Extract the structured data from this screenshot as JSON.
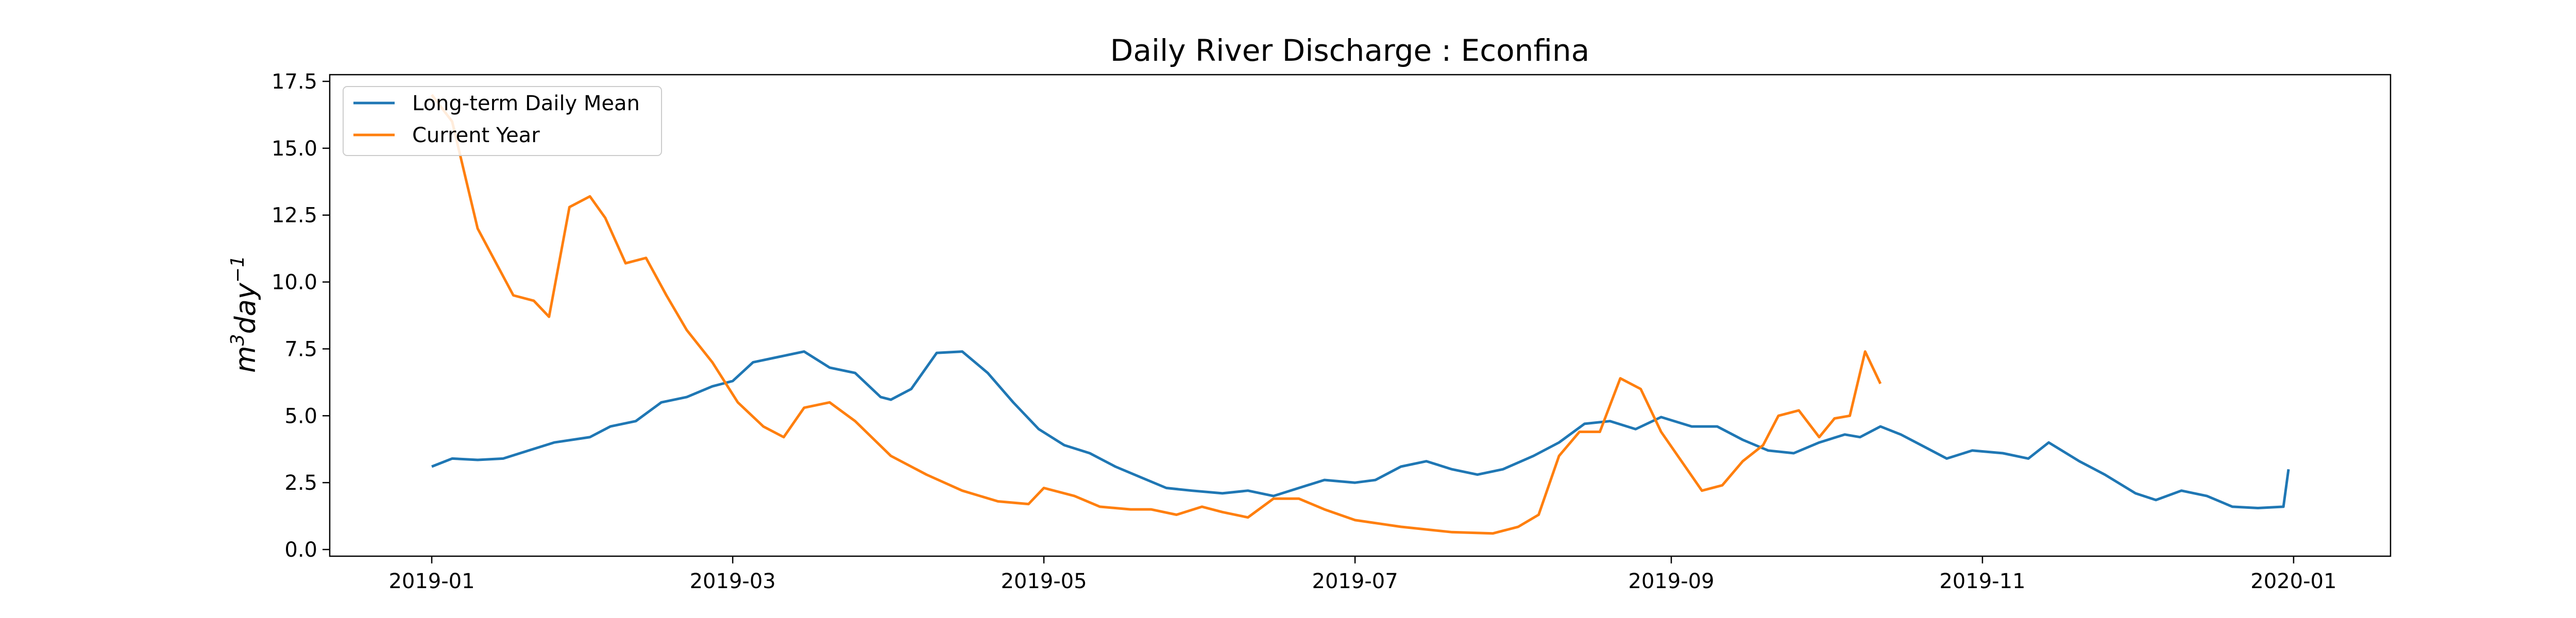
{
  "chart_data": {
    "type": "line",
    "title": "Daily River Discharge : Econfina",
    "xlabel": "",
    "ylabel": "m³day⁻¹",
    "ylabel_parts": {
      "m": "m",
      "m_sup": "3",
      "day": "day",
      "day_sup": "−1"
    },
    "x_axis": "date",
    "xlim": [
      "2018-12-12",
      "2020-01-20"
    ],
    "ylim": [
      -0.25,
      17.75
    ],
    "x_ticks": [
      {
        "value": "2019-01-01",
        "label": "2019-01"
      },
      {
        "value": "2019-03-01",
        "label": "2019-03"
      },
      {
        "value": "2019-05-01",
        "label": "2019-05"
      },
      {
        "value": "2019-07-01",
        "label": "2019-07"
      },
      {
        "value": "2019-09-01",
        "label": "2019-09"
      },
      {
        "value": "2019-11-01",
        "label": "2019-11"
      },
      {
        "value": "2020-01-01",
        "label": "2020-01"
      }
    ],
    "y_ticks": [
      {
        "value": 0,
        "label": "0.0"
      },
      {
        "value": 2.5,
        "label": "2.5"
      },
      {
        "value": 5,
        "label": "5.0"
      },
      {
        "value": 7.5,
        "label": "7.5"
      },
      {
        "value": 10,
        "label": "10.0"
      },
      {
        "value": 12.5,
        "label": "12.5"
      },
      {
        "value": 15,
        "label": "15.0"
      },
      {
        "value": 17.5,
        "label": "17.5"
      }
    ],
    "grid": false,
    "legend_position": "top-left",
    "series": [
      {
        "name": "Long-term Daily Mean",
        "color": "#1f77b4",
        "points": [
          [
            "2019-01-01",
            3.1
          ],
          [
            "2019-01-05",
            3.4
          ],
          [
            "2019-01-10",
            3.35
          ],
          [
            "2019-01-15",
            3.4
          ],
          [
            "2019-01-20",
            3.7
          ],
          [
            "2019-01-25",
            4.0
          ],
          [
            "2019-02-01",
            4.2
          ],
          [
            "2019-02-05",
            4.6
          ],
          [
            "2019-02-10",
            4.8
          ],
          [
            "2019-02-15",
            5.5
          ],
          [
            "2019-02-20",
            5.7
          ],
          [
            "2019-02-25",
            6.1
          ],
          [
            "2019-03-01",
            6.3
          ],
          [
            "2019-03-05",
            7.0
          ],
          [
            "2019-03-10",
            7.2
          ],
          [
            "2019-03-15",
            7.4
          ],
          [
            "2019-03-20",
            6.8
          ],
          [
            "2019-03-25",
            6.6
          ],
          [
            "2019-03-30",
            5.7
          ],
          [
            "2019-04-01",
            5.6
          ],
          [
            "2019-04-05",
            6.0
          ],
          [
            "2019-04-10",
            7.35
          ],
          [
            "2019-04-15",
            7.4
          ],
          [
            "2019-04-20",
            6.6
          ],
          [
            "2019-04-25",
            5.5
          ],
          [
            "2019-04-30",
            4.5
          ],
          [
            "2019-05-05",
            3.9
          ],
          [
            "2019-05-10",
            3.6
          ],
          [
            "2019-05-15",
            3.1
          ],
          [
            "2019-05-20",
            2.7
          ],
          [
            "2019-05-25",
            2.3
          ],
          [
            "2019-05-30",
            2.2
          ],
          [
            "2019-06-05",
            2.1
          ],
          [
            "2019-06-10",
            2.2
          ],
          [
            "2019-06-15",
            2.0
          ],
          [
            "2019-06-20",
            2.3
          ],
          [
            "2019-06-25",
            2.6
          ],
          [
            "2019-07-01",
            2.5
          ],
          [
            "2019-07-05",
            2.6
          ],
          [
            "2019-07-10",
            3.1
          ],
          [
            "2019-07-15",
            3.3
          ],
          [
            "2019-07-20",
            3.0
          ],
          [
            "2019-07-25",
            2.8
          ],
          [
            "2019-07-30",
            3.0
          ],
          [
            "2019-08-05",
            3.5
          ],
          [
            "2019-08-10",
            4.0
          ],
          [
            "2019-08-15",
            4.7
          ],
          [
            "2019-08-20",
            4.8
          ],
          [
            "2019-08-25",
            4.5
          ],
          [
            "2019-08-30",
            4.95
          ],
          [
            "2019-09-05",
            4.6
          ],
          [
            "2019-09-10",
            4.6
          ],
          [
            "2019-09-15",
            4.1
          ],
          [
            "2019-09-20",
            3.7
          ],
          [
            "2019-09-25",
            3.6
          ],
          [
            "2019-09-30",
            4.0
          ],
          [
            "2019-10-05",
            4.3
          ],
          [
            "2019-10-08",
            4.2
          ],
          [
            "2019-10-12",
            4.6
          ],
          [
            "2019-10-16",
            4.3
          ],
          [
            "2019-10-20",
            3.9
          ],
          [
            "2019-10-25",
            3.4
          ],
          [
            "2019-10-30",
            3.7
          ],
          [
            "2019-11-05",
            3.6
          ],
          [
            "2019-11-10",
            3.4
          ],
          [
            "2019-11-14",
            4.0
          ],
          [
            "2019-11-20",
            3.3
          ],
          [
            "2019-11-25",
            2.8
          ],
          [
            "2019-12-01",
            2.1
          ],
          [
            "2019-12-05",
            1.85
          ],
          [
            "2019-12-10",
            2.2
          ],
          [
            "2019-12-15",
            2.0
          ],
          [
            "2019-12-20",
            1.6
          ],
          [
            "2019-12-25",
            1.55
          ],
          [
            "2019-12-30",
            1.6
          ],
          [
            "2019-12-31",
            3.0
          ]
        ]
      },
      {
        "name": "Current Year",
        "color": "#ff7f0e",
        "points": [
          [
            "2019-01-01",
            17.0
          ],
          [
            "2019-01-05",
            16.0
          ],
          [
            "2019-01-10",
            12.0
          ],
          [
            "2019-01-17",
            9.5
          ],
          [
            "2019-01-21",
            9.3
          ],
          [
            "2019-01-24",
            8.7
          ],
          [
            "2019-01-28",
            12.8
          ],
          [
            "2019-02-01",
            13.2
          ],
          [
            "2019-02-04",
            12.4
          ],
          [
            "2019-02-08",
            10.7
          ],
          [
            "2019-02-12",
            10.9
          ],
          [
            "2019-02-16",
            9.5
          ],
          [
            "2019-02-20",
            8.2
          ],
          [
            "2019-02-25",
            7.0
          ],
          [
            "2019-03-02",
            5.5
          ],
          [
            "2019-03-07",
            4.6
          ],
          [
            "2019-03-11",
            4.2
          ],
          [
            "2019-03-15",
            5.3
          ],
          [
            "2019-03-20",
            5.5
          ],
          [
            "2019-03-25",
            4.8
          ],
          [
            "2019-04-01",
            3.5
          ],
          [
            "2019-04-08",
            2.8
          ],
          [
            "2019-04-15",
            2.2
          ],
          [
            "2019-04-22",
            1.8
          ],
          [
            "2019-04-28",
            1.7
          ],
          [
            "2019-05-01",
            2.3
          ],
          [
            "2019-05-07",
            2.0
          ],
          [
            "2019-05-12",
            1.6
          ],
          [
            "2019-05-18",
            1.5
          ],
          [
            "2019-05-22",
            1.5
          ],
          [
            "2019-05-27",
            1.3
          ],
          [
            "2019-06-01",
            1.6
          ],
          [
            "2019-06-05",
            1.4
          ],
          [
            "2019-06-10",
            1.2
          ],
          [
            "2019-06-15",
            1.9
          ],
          [
            "2019-06-20",
            1.9
          ],
          [
            "2019-06-25",
            1.5
          ],
          [
            "2019-07-01",
            1.1
          ],
          [
            "2019-07-10",
            0.85
          ],
          [
            "2019-07-20",
            0.65
          ],
          [
            "2019-07-28",
            0.6
          ],
          [
            "2019-08-02",
            0.85
          ],
          [
            "2019-08-06",
            1.3
          ],
          [
            "2019-08-10",
            3.5
          ],
          [
            "2019-08-14",
            4.4
          ],
          [
            "2019-08-18",
            4.4
          ],
          [
            "2019-08-22",
            6.4
          ],
          [
            "2019-08-26",
            6.0
          ],
          [
            "2019-08-30",
            4.4
          ],
          [
            "2019-09-03",
            3.3
          ],
          [
            "2019-09-07",
            2.2
          ],
          [
            "2019-09-11",
            2.4
          ],
          [
            "2019-09-15",
            3.3
          ],
          [
            "2019-09-19",
            3.9
          ],
          [
            "2019-09-22",
            5.0
          ],
          [
            "2019-09-26",
            5.2
          ],
          [
            "2019-09-30",
            4.2
          ],
          [
            "2019-10-03",
            4.9
          ],
          [
            "2019-10-06",
            5.0
          ],
          [
            "2019-10-09",
            7.4
          ],
          [
            "2019-10-12",
            6.2
          ]
        ]
      }
    ]
  }
}
